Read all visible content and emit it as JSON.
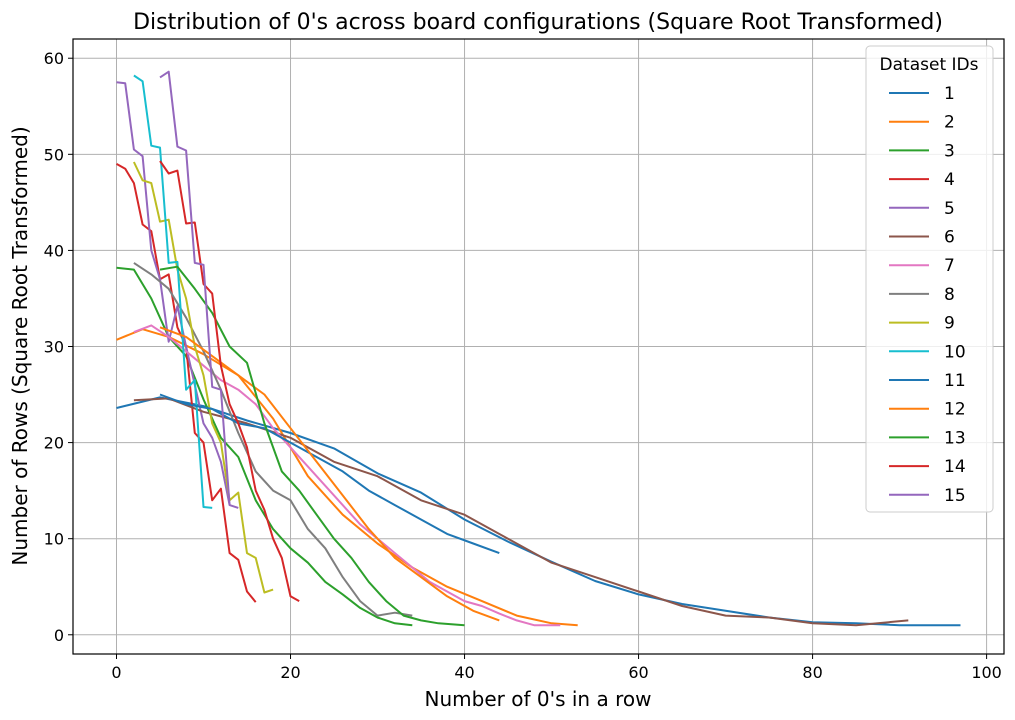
{
  "chart_data": {
    "type": "line",
    "title": "Distribution of 0's across board configurations (Square Root Transformed)",
    "xlabel": "Number of 0's in a row",
    "ylabel": "Number of Rows (Square Root Transformed)",
    "xlim": [
      -5,
      102
    ],
    "ylim": [
      -2,
      62
    ],
    "xticks": [
      0,
      20,
      40,
      60,
      80,
      100
    ],
    "yticks": [
      0,
      10,
      20,
      30,
      40,
      50,
      60
    ],
    "grid": true,
    "legend": {
      "title": "Dataset IDs",
      "placement": "top-right"
    },
    "series": [
      {
        "name": "1",
        "color": "#1f77b4",
        "x": [
          0,
          5,
          10,
          15,
          20,
          25,
          30,
          35,
          40,
          45,
          50,
          55,
          60,
          65,
          70,
          75,
          80,
          85,
          90,
          97
        ],
        "y": [
          23.6,
          24.7,
          23.8,
          22.3,
          21.0,
          19.4,
          16.8,
          14.8,
          12.0,
          9.7,
          7.6,
          5.6,
          4.2,
          3.2,
          2.5,
          1.8,
          1.3,
          1.2,
          1.0,
          1.0
        ]
      },
      {
        "name": "2",
        "color": "#ff7f0e",
        "x": [
          0,
          3,
          6,
          10,
          14,
          18,
          22,
          26,
          30,
          34,
          38,
          42,
          46,
          50,
          53
        ],
        "y": [
          30.7,
          31.8,
          31.0,
          29.2,
          27.0,
          22.5,
          16.5,
          12.5,
          9.5,
          7.0,
          5.0,
          3.5,
          2.0,
          1.2,
          1.0
        ]
      },
      {
        "name": "3",
        "color": "#2ca02c",
        "x": [
          0,
          2,
          4,
          6,
          8,
          10,
          12,
          14,
          16,
          18,
          20,
          22,
          24,
          26,
          28,
          30,
          32,
          34
        ],
        "y": [
          38.2,
          38.0,
          35.0,
          31.0,
          29.0,
          24.5,
          20.5,
          18.5,
          14.0,
          11.0,
          9.0,
          7.5,
          5.5,
          4.2,
          2.8,
          1.8,
          1.2,
          1.0
        ]
      },
      {
        "name": "4",
        "color": "#d62728",
        "x": [
          0,
          1,
          2,
          3,
          4,
          5,
          6,
          7,
          8,
          9,
          10,
          11,
          12,
          13,
          14,
          15,
          16
        ],
        "y": [
          49.0,
          48.5,
          47.0,
          42.7,
          42.0,
          37.0,
          37.5,
          32.0,
          30.0,
          21.0,
          20.0,
          14.0,
          15.2,
          8.5,
          7.8,
          4.5,
          3.4
        ]
      },
      {
        "name": "5",
        "color": "#9467bd",
        "x": [
          0,
          1,
          2,
          3,
          4,
          5,
          6,
          7,
          8,
          9,
          10,
          11,
          12,
          13,
          14
        ],
        "y": [
          57.5,
          57.4,
          50.5,
          49.8,
          40.0,
          37.0,
          30.5,
          34.2,
          30.0,
          26.0,
          22.0,
          20.5,
          18.0,
          13.5,
          13.2
        ]
      },
      {
        "name": "6",
        "color": "#8c564b",
        "x": [
          2,
          6,
          10,
          15,
          20,
          25,
          30,
          35,
          40,
          45,
          50,
          55,
          60,
          65,
          70,
          75,
          80,
          85,
          91
        ],
        "y": [
          24.4,
          24.6,
          23.2,
          22.0,
          20.5,
          18.0,
          16.5,
          14.0,
          12.5,
          10.0,
          7.5,
          6.0,
          4.5,
          3.0,
          2.0,
          1.8,
          1.2,
          1.0,
          1.5
        ]
      },
      {
        "name": "7",
        "color": "#e377c2",
        "x": [
          2,
          4,
          6,
          8,
          10,
          12,
          14,
          16,
          18,
          20,
          22,
          24,
          26,
          28,
          30,
          32,
          34,
          36,
          38,
          40,
          42,
          44,
          46,
          48,
          51
        ],
        "y": [
          31.5,
          32.2,
          31.0,
          29.5,
          28.0,
          26.5,
          25.5,
          24.0,
          21.5,
          19.5,
          17.5,
          15.5,
          13.5,
          11.5,
          10.0,
          8.5,
          7.0,
          5.5,
          4.5,
          3.5,
          3.0,
          2.2,
          1.5,
          1.0,
          1.0
        ]
      },
      {
        "name": "8",
        "color": "#7f7f7f",
        "x": [
          2,
          4,
          6,
          8,
          10,
          12,
          14,
          16,
          18,
          20,
          22,
          24,
          26,
          28,
          30,
          32,
          34
        ],
        "y": [
          38.7,
          37.5,
          36.0,
          33.0,
          29.5,
          25.5,
          21.0,
          17.0,
          15.0,
          14.0,
          11.0,
          9.0,
          6.0,
          3.5,
          2.0,
          2.3,
          2.0
        ]
      },
      {
        "name": "9",
        "color": "#bcbd22",
        "x": [
          2,
          3,
          4,
          5,
          6,
          7,
          8,
          9,
          10,
          11,
          12,
          13,
          14,
          15,
          16,
          17,
          18
        ],
        "y": [
          49.2,
          47.3,
          47.0,
          43.0,
          43.2,
          38.0,
          35.0,
          30.0,
          27.0,
          22.0,
          20.0,
          14.0,
          14.8,
          8.5,
          8.0,
          4.4,
          4.7
        ]
      },
      {
        "name": "10",
        "color": "#17becf",
        "x": [
          2,
          3,
          4,
          5,
          6,
          7,
          8,
          9,
          10,
          11
        ],
        "y": [
          58.2,
          57.6,
          50.9,
          50.7,
          38.7,
          38.8,
          25.5,
          26.5,
          13.3,
          13.2
        ]
      },
      {
        "name": "11",
        "color": "#1f77b4",
        "x": [
          5,
          8,
          11,
          14,
          17,
          20,
          23,
          26,
          29,
          32,
          35,
          38,
          41,
          44
        ],
        "y": [
          25.0,
          24.0,
          23.5,
          22.0,
          21.5,
          20.0,
          18.5,
          17.0,
          15.0,
          13.5,
          12.0,
          10.5,
          9.5,
          8.5
        ]
      },
      {
        "name": "12",
        "color": "#ff7f0e",
        "x": [
          5,
          8,
          11,
          14,
          17,
          20,
          23,
          26,
          29,
          32,
          35,
          38,
          41,
          44
        ],
        "y": [
          32.0,
          31.0,
          29.0,
          27.0,
          25.0,
          21.5,
          18.0,
          14.5,
          11.0,
          8.0,
          6.0,
          4.0,
          2.5,
          1.5
        ]
      },
      {
        "name": "13",
        "color": "#2ca02c",
        "x": [
          5,
          7,
          9,
          11,
          13,
          15,
          17,
          19,
          21,
          23,
          25,
          27,
          29,
          31,
          33,
          35,
          37,
          40
        ],
        "y": [
          38.0,
          38.3,
          36.0,
          33.5,
          30.0,
          28.3,
          22.0,
          17.0,
          15.0,
          12.5,
          10.0,
          8.0,
          5.5,
          3.5,
          2.0,
          1.5,
          1.2,
          1.0
        ]
      },
      {
        "name": "14",
        "color": "#d62728",
        "x": [
          5,
          6,
          7,
          8,
          9,
          10,
          11,
          12,
          13,
          14,
          15,
          16,
          17,
          18,
          19,
          20,
          21
        ],
        "y": [
          49.3,
          48.0,
          48.3,
          42.8,
          42.9,
          36.5,
          35.5,
          28.0,
          24.0,
          22.0,
          19.5,
          15.0,
          13.0,
          10.0,
          8.0,
          4.0,
          3.5
        ]
      },
      {
        "name": "15",
        "color": "#9467bd",
        "x": [
          5,
          6,
          7,
          8,
          9,
          10,
          11,
          12,
          13
        ],
        "y": [
          58.0,
          58.6,
          50.8,
          50.4,
          38.7,
          38.5,
          25.8,
          25.5,
          13.5
        ]
      }
    ]
  }
}
